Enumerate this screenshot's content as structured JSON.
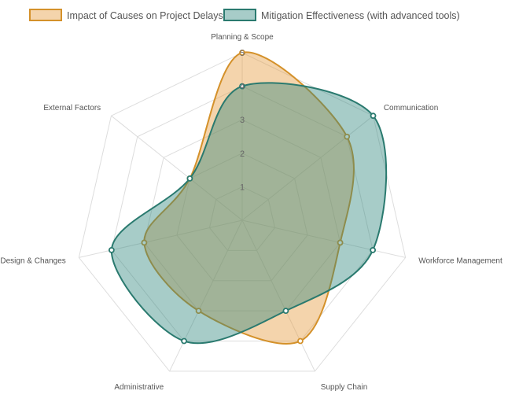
{
  "chart_data": {
    "type": "radar",
    "categories": [
      "Planning & Scope",
      "Communication",
      "Workforce Management",
      "Supply Chain",
      "Administrative",
      "Design & Changes",
      "External Factors"
    ],
    "series": [
      {
        "name": "Impact of Causes on Project Delays",
        "values": [
          5,
          4,
          3,
          4,
          3,
          3,
          2
        ],
        "color": "#d4912a",
        "fill": "rgba(230,160,70,0.45)"
      },
      {
        "name": "Mitigation Effectiveness (with advanced tools)",
        "values": [
          4,
          5,
          4,
          3,
          4,
          4,
          2
        ],
        "color": "#2a7a6f",
        "fill": "rgba(46,134,125,0.42)"
      }
    ],
    "ticks": [
      "1",
      "2",
      "3",
      "4",
      "5"
    ],
    "rmax": 5,
    "legend_position": "top",
    "grid": true
  }
}
